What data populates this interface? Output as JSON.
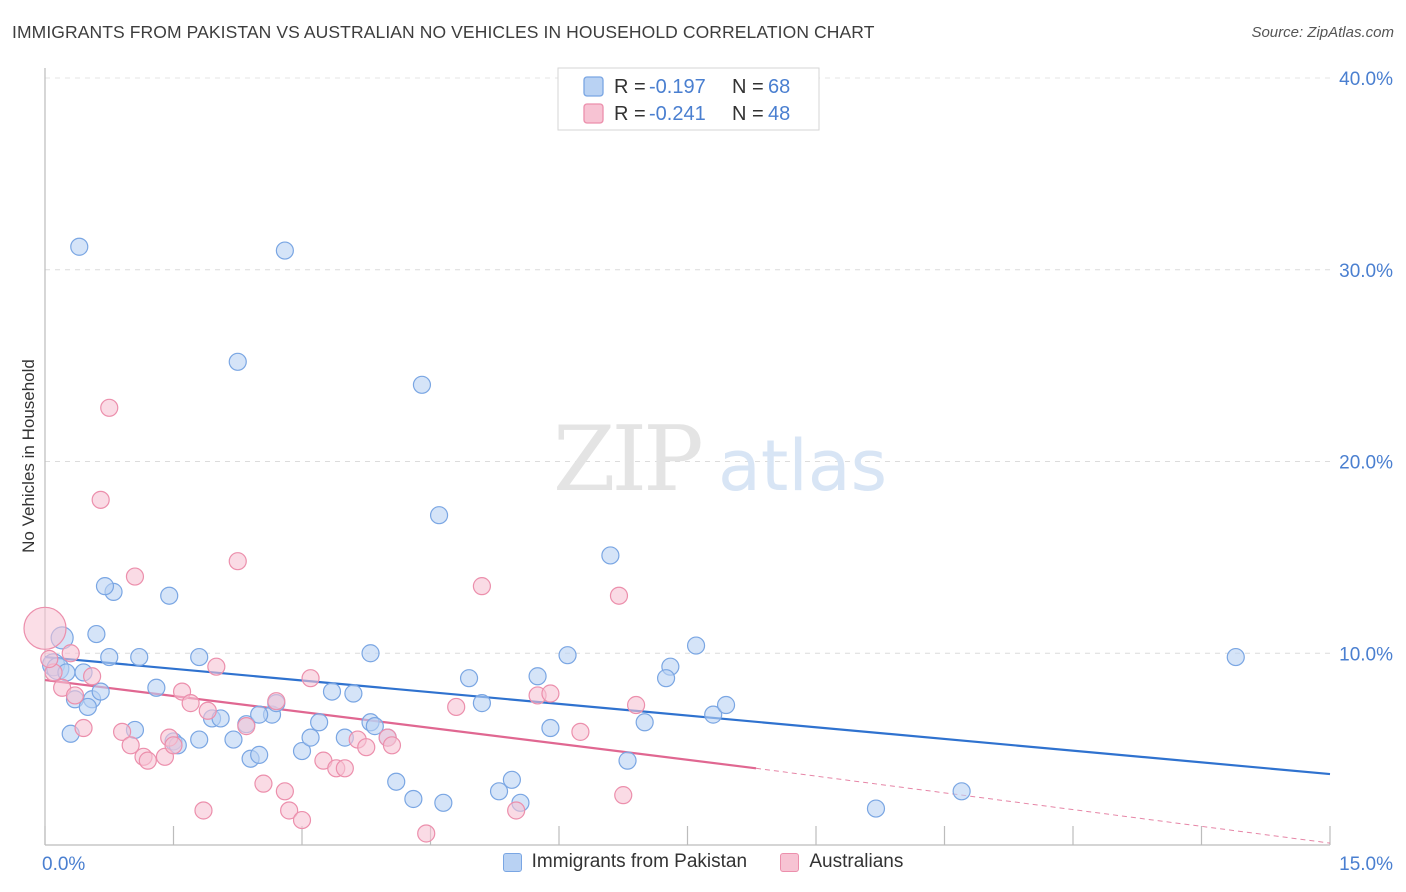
{
  "header": {
    "title": "IMMIGRANTS FROM PAKISTAN VS AUSTRALIAN NO VEHICLES IN HOUSEHOLD CORRELATION CHART",
    "source": "Source: ZipAtlas.com"
  },
  "watermark": {
    "zip": "ZIP",
    "atlas": "atlas"
  },
  "colors": {
    "blue_fill": "#b9d2f3",
    "blue_stroke": "#7aa6e3",
    "blue_line": "#2f72cf",
    "pink_fill": "#f7c3d3",
    "pink_stroke": "#ec8fac",
    "pink_line": "#e06791",
    "tick_label": "#4a7fd0"
  },
  "chart_data": {
    "type": "scatter",
    "title": "IMMIGRANTS FROM PAKISTAN VS AUSTRALIAN NO VEHICLES IN HOUSEHOLD CORRELATION CHART",
    "xlabel": "",
    "ylabel": "No Vehicles in Household",
    "xlim": [
      0,
      15
    ],
    "ylim": [
      0,
      40
    ],
    "x_tick_labels": [
      "0.0%",
      "15.0%"
    ],
    "y_ticks": [
      10,
      20,
      30,
      40
    ],
    "y_tick_labels": [
      "10.0%",
      "20.0%",
      "30.0%",
      "40.0%"
    ],
    "grid": true,
    "legend_position": "top-center",
    "stats_legend": [
      {
        "r_label": "R =",
        "r_value": "-0.197",
        "n_label": "N =",
        "n_value": "68"
      },
      {
        "r_label": "R =",
        "r_value": "-0.241",
        "n_label": "N =",
        "n_value": "48"
      }
    ],
    "series": [
      {
        "name": "Immigrants from Pakistan",
        "color": "blue",
        "trend": {
          "x": [
            0,
            15
          ],
          "y": [
            9.8,
            3.7
          ]
        },
        "points": [
          [
            0.1,
            9.4
          ],
          [
            0.15,
            9.2
          ],
          [
            0.25,
            9.0
          ],
          [
            0.2,
            10.8
          ],
          [
            0.35,
            7.6
          ],
          [
            0.45,
            9.0
          ],
          [
            0.55,
            7.6
          ],
          [
            0.5,
            7.2
          ],
          [
            0.4,
            31.2
          ],
          [
            0.8,
            13.2
          ],
          [
            0.75,
            9.8
          ],
          [
            0.7,
            13.5
          ],
          [
            0.65,
            8.0
          ],
          [
            0.6,
            11.0
          ],
          [
            1.1,
            9.8
          ],
          [
            1.3,
            8.2
          ],
          [
            1.45,
            13.0
          ],
          [
            1.5,
            5.4
          ],
          [
            1.55,
            5.2
          ],
          [
            1.8,
            9.8
          ],
          [
            1.95,
            6.6
          ],
          [
            2.05,
            6.6
          ],
          [
            1.8,
            5.5
          ],
          [
            2.2,
            5.5
          ],
          [
            2.25,
            25.2
          ],
          [
            2.35,
            6.3
          ],
          [
            2.4,
            4.5
          ],
          [
            2.5,
            4.7
          ],
          [
            2.65,
            6.8
          ],
          [
            2.5,
            6.8
          ],
          [
            2.7,
            7.4
          ],
          [
            2.8,
            31.0
          ],
          [
            3.0,
            4.9
          ],
          [
            3.1,
            5.6
          ],
          [
            3.2,
            6.4
          ],
          [
            3.35,
            8.0
          ],
          [
            3.5,
            5.6
          ],
          [
            3.6,
            7.9
          ],
          [
            3.8,
            10.0
          ],
          [
            3.8,
            6.4
          ],
          [
            3.85,
            6.2
          ],
          [
            4.0,
            5.6
          ],
          [
            4.1,
            3.3
          ],
          [
            4.3,
            2.4
          ],
          [
            4.4,
            24.0
          ],
          [
            4.6,
            17.2
          ],
          [
            4.65,
            2.2
          ],
          [
            4.95,
            8.7
          ],
          [
            5.1,
            7.4
          ],
          [
            5.3,
            2.8
          ],
          [
            5.45,
            3.4
          ],
          [
            5.55,
            2.2
          ],
          [
            5.75,
            8.8
          ],
          [
            5.9,
            6.1
          ],
          [
            6.1,
            9.9
          ],
          [
            6.6,
            15.1
          ],
          [
            6.8,
            4.4
          ],
          [
            7.0,
            6.4
          ],
          [
            7.3,
            9.3
          ],
          [
            7.25,
            8.7
          ],
          [
            7.6,
            10.4
          ],
          [
            7.8,
            6.8
          ],
          [
            7.95,
            7.3
          ],
          [
            9.7,
            1.9
          ],
          [
            10.7,
            2.8
          ],
          [
            13.9,
            9.8
          ],
          [
            0.3,
            5.8
          ],
          [
            1.05,
            6.0
          ]
        ]
      },
      {
        "name": "Australians",
        "color": "pink",
        "trend": {
          "x": [
            0,
            8.3
          ],
          "y": [
            8.6,
            4.0
          ]
        },
        "trend_dashed": {
          "x": [
            8.3,
            15
          ],
          "y": [
            4.0,
            0.1
          ]
        },
        "points": [
          [
            0.0,
            11.3
          ],
          [
            0.1,
            9.0
          ],
          [
            0.2,
            8.2
          ],
          [
            0.3,
            10.0
          ],
          [
            0.35,
            7.8
          ],
          [
            0.45,
            6.1
          ],
          [
            0.55,
            8.8
          ],
          [
            0.65,
            18.0
          ],
          [
            0.75,
            22.8
          ],
          [
            0.9,
            5.9
          ],
          [
            1.0,
            5.2
          ],
          [
            1.05,
            14.0
          ],
          [
            1.15,
            4.6
          ],
          [
            1.2,
            4.4
          ],
          [
            1.4,
            4.6
          ],
          [
            1.45,
            5.6
          ],
          [
            1.5,
            5.2
          ],
          [
            1.6,
            8.0
          ],
          [
            1.7,
            7.4
          ],
          [
            1.85,
            1.8
          ],
          [
            1.9,
            7.0
          ],
          [
            2.0,
            9.3
          ],
          [
            2.25,
            14.8
          ],
          [
            2.35,
            6.2
          ],
          [
            2.55,
            3.2
          ],
          [
            2.7,
            7.5
          ],
          [
            2.8,
            2.8
          ],
          [
            2.85,
            1.8
          ],
          [
            3.0,
            1.3
          ],
          [
            3.1,
            8.7
          ],
          [
            3.25,
            4.4
          ],
          [
            3.4,
            4.0
          ],
          [
            3.5,
            4.0
          ],
          [
            3.65,
            5.5
          ],
          [
            3.75,
            5.1
          ],
          [
            4.0,
            5.6
          ],
          [
            4.05,
            5.2
          ],
          [
            4.45,
            0.6
          ],
          [
            4.8,
            7.2
          ],
          [
            5.1,
            13.5
          ],
          [
            5.5,
            1.8
          ],
          [
            5.75,
            7.8
          ],
          [
            5.9,
            7.9
          ],
          [
            6.25,
            5.9
          ],
          [
            6.7,
            13.0
          ],
          [
            6.75,
            2.6
          ],
          [
            6.9,
            7.3
          ],
          [
            0.05,
            9.7
          ]
        ]
      }
    ]
  }
}
